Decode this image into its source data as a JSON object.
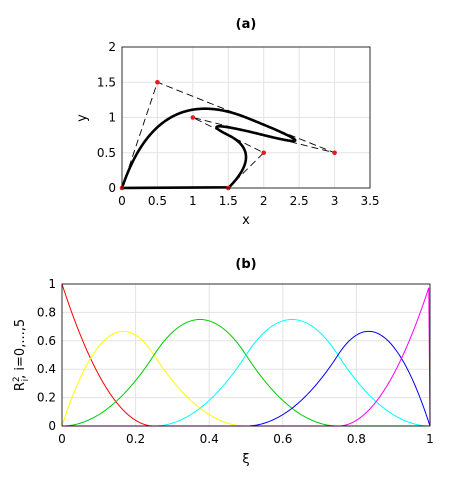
{
  "chart_data": [
    {
      "type": "line",
      "title": "(a)",
      "xlabel": "x",
      "ylabel": "y",
      "xlim": [
        0,
        3.5
      ],
      "ylim": [
        0,
        2
      ],
      "xticks": [
        "0",
        "0.5",
        "1",
        "1.5",
        "2",
        "2.5",
        "3",
        "3.5"
      ],
      "yticks": [
        "0",
        "0.5",
        "1",
        "1.5",
        "2"
      ],
      "grid": true,
      "series": [
        {
          "role": "control-polygon",
          "style": "dashed",
          "color": "#000000",
          "points": [
            [
              0,
              0
            ],
            [
              0.5,
              1.5
            ],
            [
              3,
              0.5
            ],
            [
              1,
              1
            ],
            [
              2,
              0.5
            ],
            [
              1.5,
              0
            ]
          ]
        },
        {
          "role": "curve",
          "style": "solid",
          "color": "#000000",
          "degree": 2,
          "knots": [
            0,
            0,
            0,
            0.25,
            0.5,
            0.75,
            1,
            1,
            1
          ]
        }
      ],
      "control_point_color": "#e41a1c"
    },
    {
      "type": "line",
      "title": "(b)",
      "xlabel": "ξ",
      "ylabel": "R",
      "ylabel_sup": "2",
      "ylabel_sub": "i",
      "ylabel_suffix": ", i=0,...,5",
      "xlim": [
        0,
        1
      ],
      "ylim": [
        0,
        1
      ],
      "xticks": [
        "0",
        "0.2",
        "0.4",
        "0.6",
        "0.8",
        "1"
      ],
      "yticks": [
        "0",
        "0.2",
        "0.4",
        "0.6",
        "0.8",
        "1"
      ],
      "grid": true,
      "degree": 2,
      "knots": [
        0,
        0,
        0,
        0.25,
        0.5,
        0.75,
        1,
        1,
        1
      ],
      "series": [
        {
          "color": "#ff0000",
          "peak": [
            0,
            1
          ]
        },
        {
          "color": "#ffff00",
          "peak": [
            0.167,
            0.667
          ]
        },
        {
          "color": "#00cc00",
          "peak": [
            0.375,
            0.75
          ]
        },
        {
          "color": "#00ffff",
          "peak": [
            0.625,
            0.75
          ]
        },
        {
          "color": "#0000ff",
          "peak": [
            0.833,
            0.667
          ]
        },
        {
          "color": "#ff00ff",
          "peak": [
            1,
            1
          ]
        }
      ]
    }
  ]
}
